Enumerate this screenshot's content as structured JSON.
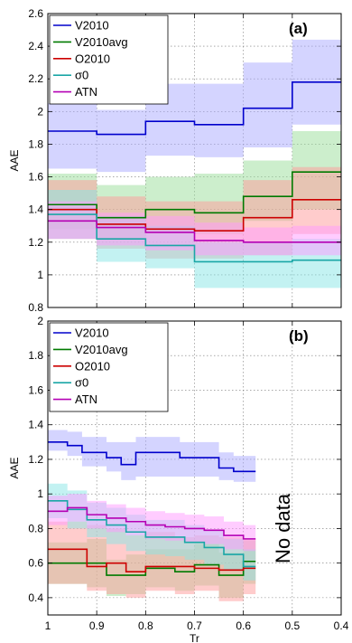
{
  "chart_data": [
    {
      "type": "line",
      "panel_label": "(a)",
      "xlabel": "",
      "ylabel": "AAE",
      "xlim": [
        1.0,
        0.4
      ],
      "x_reversed": true,
      "ylim": [
        0.8,
        2.6
      ],
      "x_ticks": [],
      "y_ticks": [
        "0.8",
        "1",
        "1.2",
        "1.4",
        "1.6",
        "1.8",
        "2",
        "2.2",
        "2.4",
        "2.6"
      ],
      "grid": true,
      "legend_position": "top-left",
      "note": "",
      "series": [
        {
          "name": "V2010",
          "color": "#0000cc",
          "band_color": "#aaaaff",
          "x": [
            1.0,
            0.9,
            0.9,
            0.8,
            0.8,
            0.7,
            0.7,
            0.6,
            0.6,
            0.5,
            0.5,
            0.4
          ],
          "y": [
            1.88,
            1.88,
            1.86,
            1.86,
            1.94,
            1.94,
            1.92,
            1.92,
            2.02,
            2.02,
            2.18,
            2.18
          ],
          "lower": [
            1.65,
            1.65,
            1.63,
            1.63,
            1.73,
            1.73,
            1.72,
            1.72,
            1.78,
            1.78,
            1.92,
            1.92
          ],
          "upper": [
            2.05,
            2.05,
            2.01,
            2.01,
            2.17,
            2.17,
            2.17,
            2.17,
            2.3,
            2.3,
            2.44,
            2.44
          ]
        },
        {
          "name": "V2010avg",
          "color": "#007a00",
          "band_color": "#99dd99",
          "x": [
            1.0,
            0.9,
            0.9,
            0.8,
            0.8,
            0.7,
            0.7,
            0.6,
            0.6,
            0.5,
            0.5,
            0.4
          ],
          "y": [
            1.43,
            1.43,
            1.35,
            1.35,
            1.4,
            1.4,
            1.38,
            1.38,
            1.48,
            1.48,
            1.63,
            1.63
          ],
          "lower": [
            1.28,
            1.28,
            1.22,
            1.22,
            1.28,
            1.28,
            1.25,
            1.25,
            1.33,
            1.33,
            1.4,
            1.4
          ],
          "upper": [
            1.62,
            1.62,
            1.55,
            1.55,
            1.6,
            1.6,
            1.62,
            1.62,
            1.7,
            1.7,
            1.88,
            1.88
          ]
        },
        {
          "name": "O2010",
          "color": "#cc0000",
          "band_color": "#ff9999",
          "x": [
            1.0,
            0.9,
            0.9,
            0.8,
            0.8,
            0.7,
            0.7,
            0.6,
            0.6,
            0.5,
            0.5,
            0.4
          ],
          "y": [
            1.4,
            1.4,
            1.31,
            1.31,
            1.28,
            1.28,
            1.27,
            1.27,
            1.35,
            1.35,
            1.46,
            1.46
          ],
          "lower": [
            1.22,
            1.22,
            1.16,
            1.16,
            1.1,
            1.1,
            1.1,
            1.1,
            1.12,
            1.12,
            1.25,
            1.25
          ],
          "upper": [
            1.58,
            1.58,
            1.48,
            1.48,
            1.45,
            1.45,
            1.45,
            1.45,
            1.58,
            1.58,
            1.66,
            1.66
          ]
        },
        {
          "name": "σ0",
          "color": "#1aa6a6",
          "band_color": "#88e6e6",
          "x": [
            1.0,
            0.9,
            0.9,
            0.8,
            0.8,
            0.7,
            0.7,
            0.6,
            0.6,
            0.5,
            0.5,
            0.4
          ],
          "y": [
            1.37,
            1.37,
            1.22,
            1.22,
            1.18,
            1.18,
            1.08,
            1.08,
            1.08,
            1.08,
            1.09,
            1.09
          ],
          "lower": [
            1.22,
            1.22,
            1.08,
            1.08,
            1.04,
            1.04,
            0.92,
            0.92,
            0.92,
            0.92,
            0.92,
            0.92
          ],
          "upper": [
            1.52,
            1.52,
            1.36,
            1.36,
            1.3,
            1.3,
            1.2,
            1.2,
            1.2,
            1.2,
            1.22,
            1.22
          ]
        },
        {
          "name": "ATN",
          "color": "#b400b4",
          "band_color": "#ff99ff",
          "x": [
            1.0,
            0.9,
            0.9,
            0.8,
            0.8,
            0.7,
            0.7,
            0.6,
            0.6,
            0.5,
            0.5,
            0.4
          ],
          "y": [
            1.33,
            1.33,
            1.29,
            1.29,
            1.26,
            1.26,
            1.21,
            1.21,
            1.2,
            1.2,
            1.2,
            1.2
          ],
          "lower": [
            1.22,
            1.22,
            1.18,
            1.18,
            1.15,
            1.15,
            1.12,
            1.12,
            1.12,
            1.12,
            1.12,
            1.12
          ],
          "upper": [
            1.45,
            1.45,
            1.38,
            1.38,
            1.36,
            1.36,
            1.32,
            1.32,
            1.29,
            1.29,
            1.3,
            1.3
          ]
        }
      ]
    },
    {
      "type": "line",
      "panel_label": "(b)",
      "xlabel": "Tr",
      "ylabel": "AAE",
      "xlim": [
        1.0,
        0.4
      ],
      "x_reversed": true,
      "ylim": [
        0.3,
        2.0
      ],
      "x_ticks": [
        "1",
        "0.9",
        "0.8",
        "0.7",
        "0.6",
        "0.5",
        "0.4"
      ],
      "y_ticks": [
        "0.4",
        "0.6",
        "0.8",
        "1",
        "1.2",
        "1.4",
        "1.6",
        "1.8",
        "2"
      ],
      "grid": true,
      "legend_position": "top-left",
      "note": "No data",
      "series": [
        {
          "name": "V2010",
          "color": "#0000cc",
          "band_color": "#aaaaff",
          "x": [
            1.0,
            0.96,
            0.96,
            0.93,
            0.93,
            0.88,
            0.88,
            0.85,
            0.85,
            0.82,
            0.82,
            0.8,
            0.8,
            0.73,
            0.73,
            0.7,
            0.7,
            0.65,
            0.65,
            0.62,
            0.62,
            0.575
          ],
          "y": [
            1.3,
            1.3,
            1.28,
            1.28,
            1.24,
            1.24,
            1.21,
            1.21,
            1.17,
            1.17,
            1.24,
            1.24,
            1.24,
            1.24,
            1.21,
            1.21,
            1.21,
            1.21,
            1.15,
            1.15,
            1.13,
            1.13
          ],
          "lower": [
            1.25,
            1.25,
            1.22,
            1.22,
            1.16,
            1.16,
            1.13,
            1.13,
            1.08,
            1.08,
            1.1,
            1.1,
            1.1,
            1.1,
            1.1,
            1.1,
            1.1,
            1.1,
            1.08,
            1.08,
            1.07,
            1.07
          ],
          "upper": [
            1.37,
            1.37,
            1.36,
            1.36,
            1.33,
            1.33,
            1.3,
            1.3,
            1.3,
            1.3,
            1.33,
            1.33,
            1.33,
            1.33,
            1.3,
            1.3,
            1.3,
            1.3,
            1.24,
            1.24,
            1.22,
            1.22
          ]
        },
        {
          "name": "V2010avg",
          "color": "#007a00",
          "band_color": "#99dd99",
          "x": [
            1.0,
            0.92,
            0.92,
            0.88,
            0.88,
            0.84,
            0.84,
            0.8,
            0.8,
            0.74,
            0.74,
            0.7,
            0.7,
            0.65,
            0.65,
            0.6,
            0.6,
            0.575
          ],
          "y": [
            0.6,
            0.6,
            0.6,
            0.6,
            0.53,
            0.53,
            0.53,
            0.53,
            0.57,
            0.57,
            0.55,
            0.55,
            0.59,
            0.59,
            0.53,
            0.53,
            0.61,
            0.61
          ],
          "lower": [
            0.48,
            0.48,
            0.46,
            0.46,
            0.41,
            0.41,
            0.42,
            0.42,
            0.46,
            0.46,
            0.44,
            0.44,
            0.47,
            0.47,
            0.4,
            0.4,
            0.48,
            0.48
          ],
          "upper": [
            0.72,
            0.72,
            0.74,
            0.74,
            0.62,
            0.62,
            0.65,
            0.65,
            0.68,
            0.68,
            0.68,
            0.68,
            0.71,
            0.71,
            0.66,
            0.66,
            0.73,
            0.73
          ]
        },
        {
          "name": "O2010",
          "color": "#cc0000",
          "band_color": "#ff9999",
          "x": [
            1.0,
            0.92,
            0.92,
            0.88,
            0.88,
            0.84,
            0.84,
            0.8,
            0.8,
            0.74,
            0.74,
            0.7,
            0.7,
            0.65,
            0.65,
            0.6,
            0.6,
            0.575
          ],
          "y": [
            0.68,
            0.68,
            0.58,
            0.58,
            0.6,
            0.6,
            0.55,
            0.55,
            0.58,
            0.58,
            0.58,
            0.58,
            0.57,
            0.57,
            0.56,
            0.56,
            0.57,
            0.57
          ],
          "lower": [
            0.48,
            0.48,
            0.44,
            0.44,
            0.42,
            0.42,
            0.4,
            0.4,
            0.44,
            0.44,
            0.42,
            0.42,
            0.44,
            0.44,
            0.38,
            0.38,
            0.42,
            0.42
          ],
          "upper": [
            0.84,
            0.84,
            0.82,
            0.82,
            0.8,
            0.8,
            0.76,
            0.76,
            0.78,
            0.78,
            0.75,
            0.75,
            0.76,
            0.76,
            0.75,
            0.75,
            0.74,
            0.74
          ]
        },
        {
          "name": "σ0",
          "color": "#1aa6a6",
          "band_color": "#88e6e6",
          "x": [
            1.0,
            0.96,
            0.96,
            0.92,
            0.92,
            0.88,
            0.88,
            0.84,
            0.84,
            0.8,
            0.8,
            0.76,
            0.76,
            0.72,
            0.72,
            0.68,
            0.68,
            0.64,
            0.64,
            0.6,
            0.6,
            0.575
          ],
          "y": [
            0.96,
            0.96,
            0.91,
            0.91,
            0.85,
            0.85,
            0.82,
            0.82,
            0.78,
            0.78,
            0.75,
            0.75,
            0.75,
            0.75,
            0.72,
            0.72,
            0.69,
            0.69,
            0.65,
            0.65,
            0.58,
            0.58
          ],
          "lower": [
            0.86,
            0.86,
            0.8,
            0.8,
            0.75,
            0.75,
            0.71,
            0.71,
            0.67,
            0.67,
            0.65,
            0.65,
            0.64,
            0.64,
            0.62,
            0.62,
            0.59,
            0.59,
            0.56,
            0.56,
            0.5,
            0.5
          ],
          "upper": [
            1.06,
            1.06,
            1.02,
            1.02,
            0.95,
            0.95,
            0.92,
            0.92,
            0.88,
            0.88,
            0.85,
            0.85,
            0.85,
            0.85,
            0.82,
            0.82,
            0.79,
            0.79,
            0.74,
            0.74,
            0.68,
            0.68
          ]
        },
        {
          "name": "ATN",
          "color": "#b400b4",
          "band_color": "#ff99ff",
          "x": [
            1.0,
            0.96,
            0.96,
            0.92,
            0.92,
            0.88,
            0.88,
            0.84,
            0.84,
            0.8,
            0.8,
            0.76,
            0.76,
            0.72,
            0.72,
            0.68,
            0.68,
            0.64,
            0.64,
            0.6,
            0.6,
            0.575
          ],
          "y": [
            0.9,
            0.9,
            0.92,
            0.92,
            0.88,
            0.88,
            0.86,
            0.86,
            0.84,
            0.84,
            0.82,
            0.82,
            0.81,
            0.81,
            0.8,
            0.8,
            0.79,
            0.79,
            0.76,
            0.76,
            0.74,
            0.74
          ],
          "lower": [
            0.82,
            0.82,
            0.84,
            0.84,
            0.8,
            0.8,
            0.78,
            0.78,
            0.76,
            0.76,
            0.74,
            0.74,
            0.73,
            0.73,
            0.72,
            0.72,
            0.71,
            0.71,
            0.68,
            0.68,
            0.67,
            0.67
          ],
          "upper": [
            0.99,
            0.99,
            1.0,
            1.0,
            0.96,
            0.96,
            0.94,
            0.94,
            0.92,
            0.92,
            0.9,
            0.9,
            0.89,
            0.89,
            0.88,
            0.88,
            0.87,
            0.87,
            0.84,
            0.84,
            0.82,
            0.82
          ]
        }
      ]
    }
  ]
}
